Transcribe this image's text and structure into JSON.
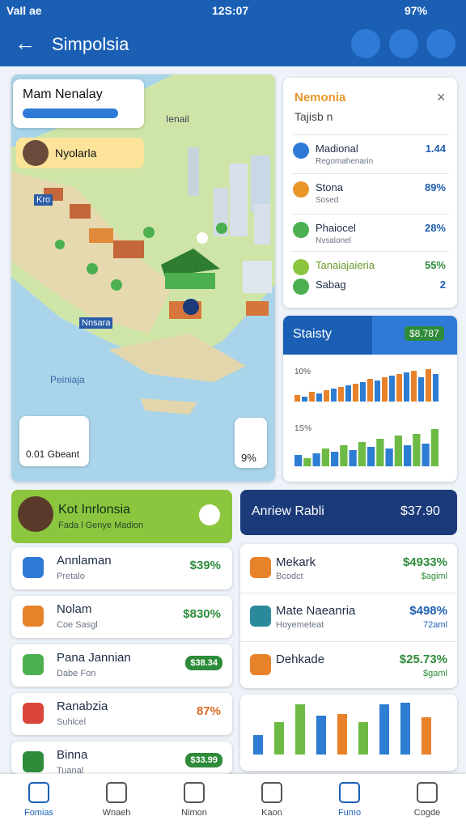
{
  "status": {
    "carrier": "VaIl ae",
    "time": "12S:07",
    "battery": "97%"
  },
  "header": {
    "title": "Simpolsia"
  },
  "map": {
    "search_title": "Mam Nenalay",
    "profile": "Nyolarla",
    "labels": [
      "Ienail",
      "Kro",
      "Nnsara",
      "Peiniaja"
    ],
    "legend": "0.01 Gbeant",
    "badge": "9%"
  },
  "info": {
    "title": "Nemonia",
    "subtitle": "Tajisb n",
    "items": [
      {
        "name": "Madional",
        "sub": "Regomahenarin",
        "value": "1.44"
      },
      {
        "name": "Stona",
        "sub": "Sosed",
        "value": "89%"
      },
      {
        "name": "Phaiocel",
        "sub": "Nvsalonel",
        "value": "28%"
      },
      {
        "name": "Tanaiajaieria",
        "sub": "",
        "value": "55%"
      },
      {
        "name": "Sabag",
        "sub": "",
        "value": "2"
      }
    ]
  },
  "stats": {
    "title": "Staisty",
    "value": "$8.787",
    "labels": [
      "10%",
      "1S%"
    ],
    "top_series": [
      {
        "color": "#e8822a",
        "values": [
          8,
          12,
          14,
          18,
          22,
          28,
          30,
          34,
          38,
          40
        ]
      },
      {
        "color": "#2d7dd2",
        "values": [
          6,
          10,
          16,
          20,
          24,
          26,
          32,
          36,
          30,
          34
        ]
      }
    ],
    "bottom_series": [
      {
        "color": "#2d7dd2",
        "values": [
          14,
          16,
          18,
          20,
          24,
          22,
          26,
          28
        ]
      },
      {
        "color": "#6dbb45",
        "values": [
          10,
          22,
          26,
          30,
          34,
          38,
          40,
          46
        ]
      }
    ]
  },
  "left_list": {
    "title": "Kot Inrlonsia",
    "subtitle": "Fada l Genye Madion",
    "items": [
      {
        "name": "Annlaman",
        "sub": "Pretalo",
        "value": "$39%",
        "color": "#2e8b3a"
      },
      {
        "name": "Nolam",
        "sub": "Coe Sasgl",
        "value": "$830%",
        "color": "#2e8b3a"
      },
      {
        "name": "Pana Jannian",
        "sub": "Dabe Fon",
        "value": "$38.34",
        "color": "#2e8b3a"
      },
      {
        "name": "Ranabzia",
        "sub": "Suhlcel",
        "value": "87%",
        "color": "#e06a2a"
      },
      {
        "name": "Binna",
        "sub": "Tuanal",
        "value": "$33.99",
        "color": "#2e8b3a"
      }
    ]
  },
  "right_list": {
    "title": "Anriew Rabli",
    "value": "$37.90",
    "items": [
      {
        "name": "Mekark",
        "sub": "Bcodct",
        "value": "$4933%",
        "sub_value": "$agiml",
        "color": "#2e8b3a"
      },
      {
        "name": "Mate Naeanria",
        "sub": "Hoyemeteat",
        "value": "$498%",
        "sub_value": "72aml",
        "color": "#1f5fb0"
      },
      {
        "name": "Dehkade",
        "sub": "",
        "value": "$25.73%",
        "sub_value": "$gaml",
        "color": "#2e8b3a"
      }
    ],
    "bars": [
      {
        "value": 24,
        "color": "#2d7dd2"
      },
      {
        "value": 40,
        "color": "#6dbb45"
      },
      {
        "value": 62,
        "color": "#6dbb45"
      },
      {
        "value": 48,
        "color": "#2d7dd2"
      },
      {
        "value": 50,
        "color": "#e8822a"
      },
      {
        "value": 40,
        "color": "#6dbb45"
      },
      {
        "value": 62,
        "color": "#2d7dd2"
      },
      {
        "value": 64,
        "color": "#2d7dd2"
      },
      {
        "value": 46,
        "color": "#e8822a"
      }
    ]
  },
  "nav": [
    "Fomias",
    "Wnaeh",
    "Nimon",
    "Kaon",
    "Fumo",
    "Cogde"
  ]
}
